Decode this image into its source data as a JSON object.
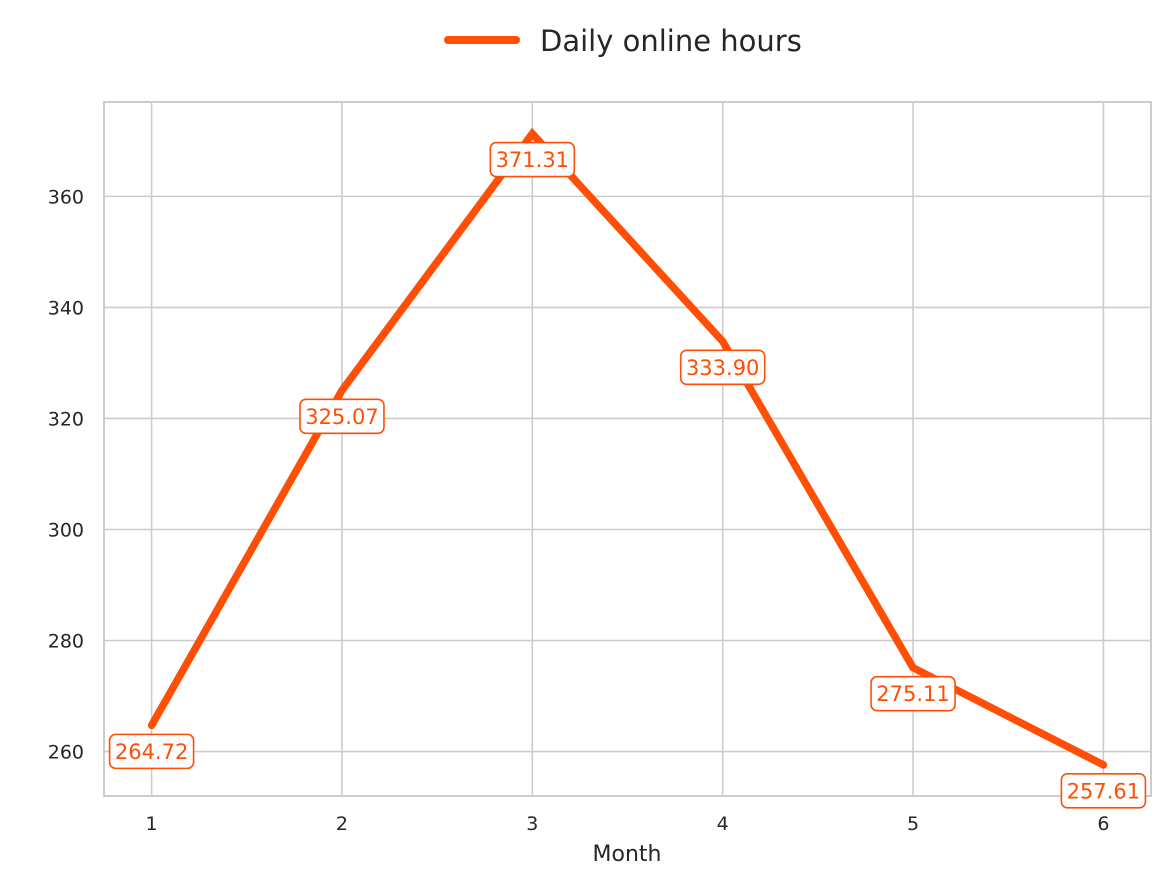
{
  "chart_data": {
    "type": "line",
    "title": "",
    "xlabel": "Month",
    "ylabel": "",
    "x": [
      1,
      2,
      3,
      4,
      5,
      6
    ],
    "series": [
      {
        "name": "Daily online hours",
        "values": [
          264.72,
          325.07,
          371.31,
          333.9,
          275.11,
          257.61
        ],
        "labels": [
          "264.72",
          "325.07",
          "371.31",
          "333.90",
          "275.11",
          "257.61"
        ],
        "color": "#FF4E05"
      }
    ],
    "x_ticks": [
      1,
      2,
      3,
      4,
      5,
      6
    ],
    "x_tick_labels": [
      "1",
      "2",
      "3",
      "4",
      "5",
      "6"
    ],
    "y_ticks": [
      260,
      280,
      300,
      320,
      340,
      360
    ],
    "y_tick_labels": [
      "260",
      "280",
      "300",
      "320",
      "340",
      "360"
    ],
    "xlim": [
      0.75,
      6.25
    ],
    "ylim": [
      252.0,
      377.0
    ],
    "grid": true,
    "legend_position": "top-center",
    "colors": {
      "line": "#FF4E05",
      "grid": "#CCCCCC",
      "frame": "#CCCCCC",
      "text": "#262626"
    }
  }
}
